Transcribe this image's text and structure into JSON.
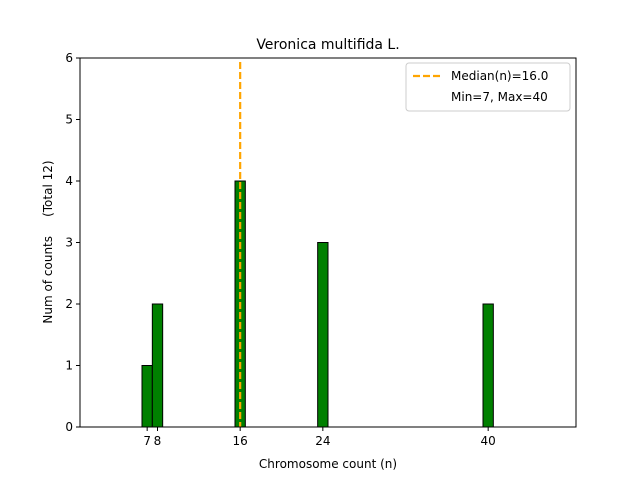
{
  "chart_data": {
    "type": "bar",
    "title": "Veronica multifida L.",
    "xlabel": "Chromosome count (n)",
    "ylabel": "Num of counts     (Total 12)",
    "xlim": [
      0.5,
      48.5
    ],
    "ylim": [
      0,
      6
    ],
    "yticks": [
      0,
      1,
      2,
      3,
      4,
      5,
      6
    ],
    "xticks": [
      7,
      8,
      16,
      24,
      40
    ],
    "xtick_labels": [
      "7",
      "8",
      "16",
      "24",
      "40"
    ],
    "bin_width": 1,
    "bar_color": "#008000",
    "bar_edge_color": "#000000",
    "bars": [
      {
        "x": 7,
        "count": 1
      },
      {
        "x": 8,
        "count": 2
      },
      {
        "x": 16,
        "count": 4
      },
      {
        "x": 24,
        "count": 3
      },
      {
        "x": 40,
        "count": 2
      }
    ],
    "baseline_range": [
      4,
      44
    ],
    "median_line": {
      "x": 16.0,
      "color": "#FFA500"
    },
    "legend": {
      "position": "top-right",
      "entries": [
        "Median(n)=16.0",
        "Min=7, Max=40"
      ]
    }
  }
}
